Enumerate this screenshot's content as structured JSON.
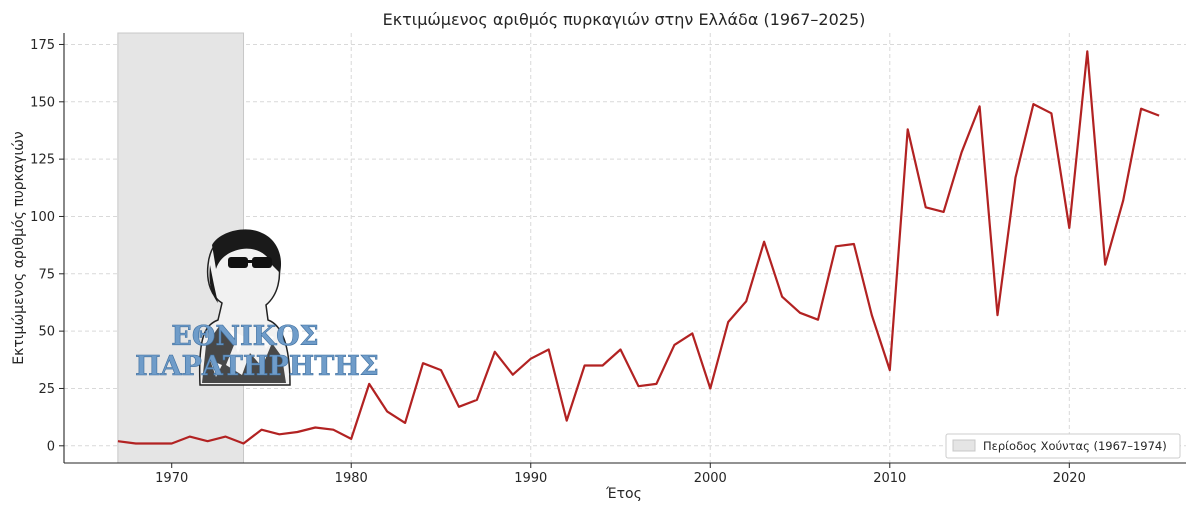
{
  "chart_data": {
    "type": "line",
    "title": "Εκτιμώμενος αριθμός πυρκαγιών στην Ελλάδα (1967–2025)",
    "xlabel": "Έτος",
    "ylabel": "Εκτιμώμενος αριθμός πυρκαγιών",
    "xlim": [
      1964,
      2026.5
    ],
    "ylim": [
      -7.5,
      180
    ],
    "xticks": [
      1970,
      1980,
      1990,
      2000,
      2010,
      2020
    ],
    "yticks": [
      0,
      25,
      50,
      75,
      100,
      125,
      150,
      175
    ],
    "grid": true,
    "legend_position": "bottom-right",
    "line_color": "#b22222",
    "shade_color": "#e5e5e5",
    "shaded_region": {
      "label": "Περίοδος Χούντας (1967–1974)",
      "x_start": 1967,
      "x_end": 1974
    },
    "series": [
      {
        "x": [
          1967,
          1968,
          1969,
          1970,
          1971,
          1972,
          1973,
          1974,
          1975,
          1976,
          1977,
          1978,
          1979,
          1980,
          1981,
          1982,
          1983,
          1984,
          1985,
          1986,
          1987,
          1988,
          1989,
          1990,
          1991,
          1992,
          1993,
          1994,
          1995,
          1996,
          1997,
          1998,
          1999,
          2000,
          2001,
          2002,
          2003,
          2004,
          2005,
          2006,
          2007,
          2008,
          2009,
          2010,
          2011,
          2012,
          2013,
          2014,
          2015,
          2016,
          2017,
          2018,
          2019,
          2020,
          2021,
          2022,
          2023,
          2024,
          2025
        ],
        "values": [
          2,
          1,
          1,
          1,
          4,
          2,
          4,
          1,
          7,
          5,
          6,
          8,
          7,
          3,
          27,
          15,
          10,
          36,
          33,
          17,
          20,
          41,
          31,
          38,
          42,
          11,
          35,
          35,
          42,
          26,
          27,
          44,
          49,
          25,
          54,
          63,
          89,
          65,
          58,
          55,
          87,
          88,
          57,
          33,
          138,
          104,
          102,
          128,
          148,
          57,
          117,
          149,
          145,
          95,
          172,
          79,
          107,
          147,
          144
        ]
      }
    ]
  },
  "watermark": {
    "text_line1": "ΕΘΝΙΚΟΣ",
    "text_line2": "ΠΑΡΑΤΗΡΗΤΗΣ"
  }
}
